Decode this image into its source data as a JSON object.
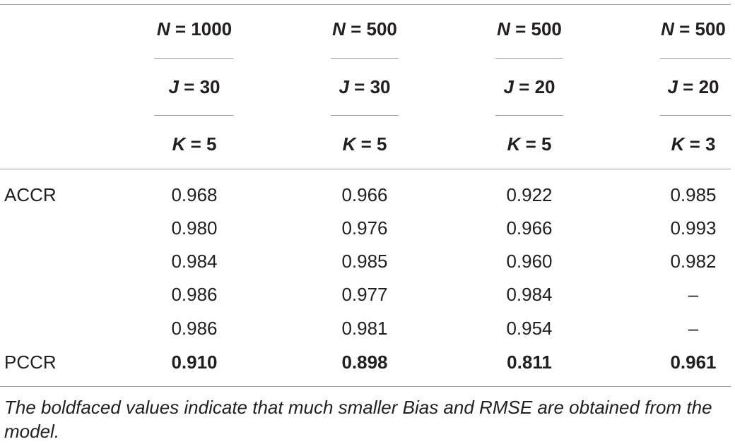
{
  "columns": [
    {
      "n_label": "N",
      "n_value": " = 1000",
      "j_label": "J",
      "j_value": " = 30",
      "k_label": "K",
      "k_value": " = 5"
    },
    {
      "n_label": "N",
      "n_value": " = 500",
      "j_label": "J",
      "j_value": " = 30",
      "k_label": "K",
      "k_value": " = 5"
    },
    {
      "n_label": "N",
      "n_value": " = 500",
      "j_label": "J",
      "j_value": " = 20",
      "k_label": "K",
      "k_value": " = 5"
    },
    {
      "n_label": "N",
      "n_value": " = 500",
      "j_label": "J",
      "j_value": " = 20",
      "k_label": "K",
      "k_value": " = 3"
    }
  ],
  "rows": [
    {
      "label": "ACCR",
      "values": [
        "0.968",
        "0.966",
        "0.922",
        "0.985"
      ],
      "bold": false
    },
    {
      "label": "",
      "values": [
        "0.980",
        "0.976",
        "0.966",
        "0.993"
      ],
      "bold": false
    },
    {
      "label": "",
      "values": [
        "0.984",
        "0.985",
        "0.960",
        "0.982"
      ],
      "bold": false
    },
    {
      "label": "",
      "values": [
        "0.986",
        "0.977",
        "0.984",
        "–"
      ],
      "bold": false
    },
    {
      "label": "",
      "values": [
        "0.986",
        "0.981",
        "0.954",
        "–"
      ],
      "bold": false
    },
    {
      "label": "PCCR",
      "values": [
        "0.910",
        "0.898",
        "0.811",
        "0.961"
      ],
      "bold": true
    }
  ],
  "footnote": "The boldfaced values indicate that much smaller Bias and RMSE are obtained from the model."
}
